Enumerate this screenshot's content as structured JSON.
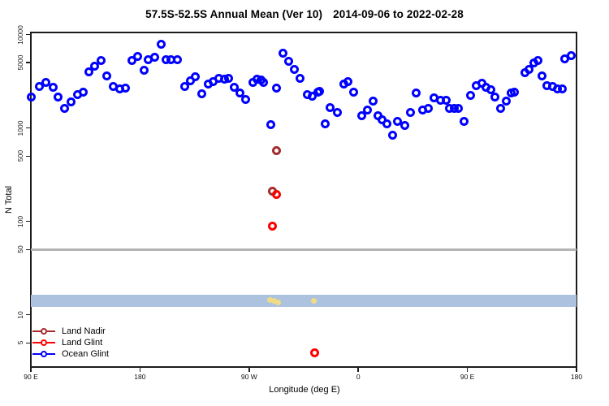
{
  "title": {
    "main": "57.5S-52.5S Annual Mean (Ver 10)",
    "dates": "2014-09-06 to 2022-02-28"
  },
  "legend": {
    "items": [
      {
        "label": "Land Nadir",
        "color": "#A52A2A"
      },
      {
        "label": "Land Glint",
        "color": "#FF0000"
      },
      {
        "label": "Ocean Glint",
        "color": "#0000FF"
      }
    ]
  },
  "colors": {
    "band": "#ADC2DF",
    "reference_line": "#B4B4B4",
    "axis": "#1C1C1C",
    "background": "#FFFFFF"
  },
  "chart_data": {
    "type": "scatter",
    "title": "57.5S-52.5S Annual Mean (Ver 10)  2014-09-06 to 2022-02-28",
    "xlabel": "Longitude (deg E)",
    "ylabel": "N Total",
    "grid": false,
    "legend_position": "bottom-left-inside",
    "x_axis": {
      "note": "longitude, degrees east increasing continuously from 90E; 270 = 90W, 360 = 0, 450 = 90E, 540 = 180",
      "range": [
        90,
        540
      ],
      "ticks": [
        {
          "pos": 90,
          "label": "90 E"
        },
        {
          "pos": 180,
          "label": "180"
        },
        {
          "pos": 270,
          "label": "90 W"
        },
        {
          "pos": 360,
          "label": "0"
        },
        {
          "pos": 450,
          "label": "90 E"
        },
        {
          "pos": 540,
          "label": "180"
        }
      ]
    },
    "y_axis": {
      "scale": "log",
      "range": [
        2.76,
        10550
      ],
      "ticks": [
        10000,
        5000,
        1000,
        500,
        100,
        50,
        10,
        5
      ],
      "tick_labels": [
        "10000",
        "5000",
        "1000",
        "500",
        "100",
        "50",
        "10",
        "5"
      ]
    },
    "reference_line": {
      "y": 50,
      "color": "#B4B4B4"
    },
    "band": {
      "n_top": 16.3,
      "n_bottom": 12.1,
      "color": "#ADC2DF"
    },
    "series": [
      {
        "name": "Expected (unlabeled)",
        "slug": "expected-yellow",
        "color": "#F0DC85",
        "style": "filled",
        "points": [
          [
            287.5,
            14.5
          ],
          [
            290.8,
            14.0
          ],
          [
            293.8,
            13.6
          ],
          [
            323.4,
            14.0
          ]
        ]
      },
      {
        "name": "Land Nadir",
        "slug": "land-nadir",
        "color": "#A52A2A",
        "style": "ring",
        "points": [
          [
            289.5,
            210
          ],
          [
            292.6,
            571
          ]
        ]
      },
      {
        "name": "Land Glint",
        "slug": "land-glint",
        "color": "#FF0000",
        "style": "ring",
        "points": [
          [
            288.9,
            89
          ],
          [
            292.6,
            196
          ],
          [
            323.9,
            3.9
          ]
        ]
      },
      {
        "name": "Ocean Glint",
        "slug": "ocean-glint",
        "color": "#0000FF",
        "style": "ring",
        "points": [
          [
            90.2,
            2158
          ],
          [
            96.9,
            2777
          ],
          [
            102.5,
            3069
          ],
          [
            108.1,
            2722
          ],
          [
            112.6,
            2128
          ],
          [
            117.7,
            1630
          ],
          [
            123.0,
            1897
          ],
          [
            128.4,
            2273
          ],
          [
            133.3,
            2432
          ],
          [
            138.2,
            4009
          ],
          [
            142.7,
            4581
          ],
          [
            147.8,
            5236
          ],
          [
            152.7,
            3581
          ],
          [
            158.3,
            2777
          ],
          [
            163.2,
            2649
          ],
          [
            167.9,
            2692
          ],
          [
            173.5,
            5236
          ],
          [
            177.9,
            5788
          ],
          [
            183.5,
            4140
          ],
          [
            186.6,
            5345
          ],
          [
            191.8,
            5711
          ],
          [
            197.3,
            7816
          ],
          [
            201.4,
            5345
          ],
          [
            205.8,
            5345
          ],
          [
            210.7,
            5345
          ],
          [
            216.8,
            2777
          ],
          [
            221.4,
            3177
          ],
          [
            225.9,
            3508
          ],
          [
            230.8,
            2307
          ],
          [
            236.4,
            2972
          ],
          [
            240.2,
            3133
          ],
          [
            244.9,
            3390
          ],
          [
            249.4,
            3324
          ],
          [
            253.2,
            3390
          ],
          [
            257.6,
            2722
          ],
          [
            262.6,
            2352
          ],
          [
            267.2,
            2032
          ],
          [
            273.2,
            3069
          ],
          [
            276.6,
            3324
          ],
          [
            279.9,
            3286
          ],
          [
            282.1,
            3069
          ],
          [
            287.7,
            1091
          ],
          [
            292.6,
            2692
          ],
          [
            297.8,
            6310
          ],
          [
            302.9,
            5164
          ],
          [
            307.2,
            4285
          ],
          [
            312.3,
            3390
          ],
          [
            317.8,
            2273
          ],
          [
            321.9,
            2173
          ],
          [
            326.4,
            2399
          ],
          [
            327.9,
            2483
          ],
          [
            332.9,
            1114
          ],
          [
            336.9,
            1663
          ],
          [
            342.9,
            1455
          ],
          [
            348.0,
            2931
          ],
          [
            351.3,
            3133
          ],
          [
            356.5,
            2399
          ],
          [
            363.2,
            1362
          ],
          [
            367.7,
            1553
          ],
          [
            372.1,
            1925
          ],
          [
            376.6,
            1362
          ],
          [
            379.9,
            1214
          ],
          [
            383.9,
            1099
          ],
          [
            388.6,
            830
          ],
          [
            392.6,
            1167
          ],
          [
            398.2,
            1071
          ],
          [
            403.3,
            1455
          ],
          [
            407.8,
            2352
          ],
          [
            413.2,
            1553
          ],
          [
            417.6,
            1607
          ],
          [
            422.8,
            2098
          ],
          [
            427.9,
            1963
          ],
          [
            432.2,
            1963
          ],
          [
            435.0,
            1630
          ],
          [
            439.1,
            1630
          ],
          [
            442.4,
            1607
          ],
          [
            447.3,
            1167
          ],
          [
            452.9,
            2244
          ],
          [
            457.4,
            2833
          ],
          [
            461.8,
            3034
          ],
          [
            465.2,
            2722
          ],
          [
            469.6,
            2564
          ],
          [
            472.5,
            2128
          ],
          [
            477.5,
            1630
          ],
          [
            482.4,
            1925
          ],
          [
            485.9,
            2352
          ],
          [
            489.1,
            2399
          ],
          [
            497.6,
            3954
          ],
          [
            500.9,
            4285
          ],
          [
            504.7,
            5000
          ],
          [
            508.3,
            5236
          ],
          [
            511.3,
            3581
          ],
          [
            515.8,
            2833
          ],
          [
            520.3,
            2777
          ],
          [
            524.3,
            2649
          ],
          [
            528.5,
            2649
          ],
          [
            530.1,
            5483
          ],
          [
            535.9,
            5943
          ]
        ]
      }
    ]
  }
}
